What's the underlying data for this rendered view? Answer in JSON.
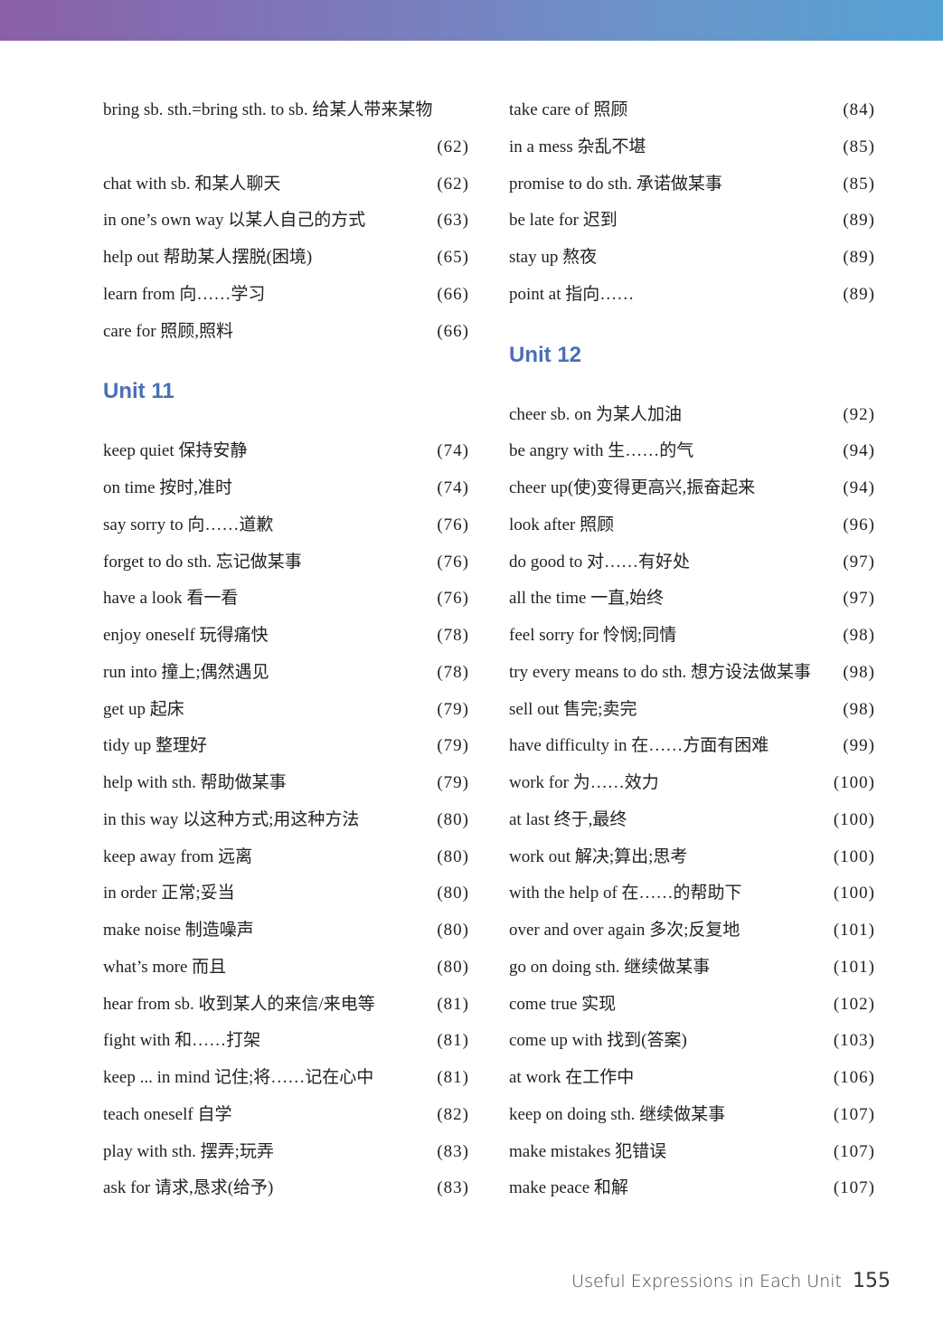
{
  "header_band": {
    "colors": [
      "#8a5fa8",
      "#55a2d5"
    ]
  },
  "columns": [
    {
      "blocks": [
        {
          "type": "row",
          "text": "bring sb. sth.=bring sth. to sb. 给某人带来某物",
          "page": ""
        },
        {
          "type": "row",
          "text": "",
          "page": "(62)"
        },
        {
          "type": "row",
          "text": "chat with sb. 和某人聊天",
          "page": "(62)"
        },
        {
          "type": "row",
          "text": "in one’s own way 以某人自己的方式",
          "page": "(63)"
        },
        {
          "type": "row",
          "text": "help out 帮助某人摆脱(困境)",
          "page": "(65)"
        },
        {
          "type": "row",
          "text": "learn from 向……学习",
          "page": "(66)"
        },
        {
          "type": "row",
          "text": "care for 照顾,照料",
          "page": "(66)"
        },
        {
          "type": "heading",
          "text": "Unit 11"
        },
        {
          "type": "row",
          "text": "keep quiet 保持安静",
          "page": "(74)"
        },
        {
          "type": "row",
          "text": "on time 按时,准时",
          "page": "(74)"
        },
        {
          "type": "row",
          "text": "say sorry to 向……道歉",
          "page": "(76)"
        },
        {
          "type": "row",
          "text": "forget to do sth. 忘记做某事",
          "page": "(76)"
        },
        {
          "type": "row",
          "text": "have a look 看一看",
          "page": "(76)"
        },
        {
          "type": "row",
          "text": "enjoy oneself 玩得痛快",
          "page": "(78)"
        },
        {
          "type": "row",
          "text": "run into 撞上;偶然遇见",
          "page": "(78)"
        },
        {
          "type": "row",
          "text": "get up 起床",
          "page": "(79)"
        },
        {
          "type": "row",
          "text": "tidy up 整理好",
          "page": "(79)"
        },
        {
          "type": "row",
          "text": "help with sth. 帮助做某事",
          "page": "(79)"
        },
        {
          "type": "row",
          "text": "in this way 以这种方式;用这种方法",
          "page": "(80)"
        },
        {
          "type": "row",
          "text": "keep away from 远离",
          "page": "(80)"
        },
        {
          "type": "row",
          "text": "in order 正常;妥当",
          "page": "(80)"
        },
        {
          "type": "row",
          "text": "make noise 制造噪声",
          "page": "(80)"
        },
        {
          "type": "row",
          "text": "what’s more 而且",
          "page": "(80)"
        },
        {
          "type": "row",
          "text": "hear from sb. 收到某人的来信/来电等",
          "page": "(81)"
        },
        {
          "type": "row",
          "text": "fight with 和……打架",
          "page": "(81)"
        },
        {
          "type": "row",
          "text": "keep ... in mind 记住;将……记在心中",
          "page": "(81)"
        },
        {
          "type": "row",
          "text": "teach oneself 自学",
          "page": "(82)"
        },
        {
          "type": "row",
          "text": "play with sth. 摆弄;玩弄",
          "page": "(83)"
        },
        {
          "type": "row",
          "text": "ask for 请求,恳求(给予)",
          "page": "(83)"
        }
      ]
    },
    {
      "blocks": [
        {
          "type": "row",
          "text": "take care of 照顾",
          "page": "(84)"
        },
        {
          "type": "row",
          "text": "in a mess 杂乱不堪",
          "page": "(85)"
        },
        {
          "type": "row",
          "text": "promise to do sth. 承诺做某事",
          "page": "(85)"
        },
        {
          "type": "row",
          "text": "be late for 迟到",
          "page": "(89)"
        },
        {
          "type": "row",
          "text": "stay up 熬夜",
          "page": "(89)"
        },
        {
          "type": "row",
          "text": "point at 指向……",
          "page": "(89)"
        },
        {
          "type": "heading",
          "text": "Unit 12"
        },
        {
          "type": "row",
          "text": "cheer sb. on 为某人加油",
          "page": "(92)"
        },
        {
          "type": "row",
          "text": "be angry with 生……的气",
          "page": "(94)"
        },
        {
          "type": "row",
          "text": "cheer up(使)变得更高兴,振奋起来",
          "page": "(94)"
        },
        {
          "type": "row",
          "text": "look after 照顾",
          "page": "(96)"
        },
        {
          "type": "row",
          "text": "do good to 对……有好处",
          "page": "(97)"
        },
        {
          "type": "row",
          "text": "all the time 一直,始终",
          "page": "(97)"
        },
        {
          "type": "row",
          "text": "feel sorry for 怜悯;同情",
          "page": "(98)"
        },
        {
          "type": "row",
          "text": "try every means to do sth. 想方设法做某事",
          "page": "(98)"
        },
        {
          "type": "row",
          "text": "sell out 售完;卖完",
          "page": "(98)"
        },
        {
          "type": "row",
          "text": "have difficulty in 在……方面有困难",
          "page": "(99)"
        },
        {
          "type": "row",
          "text": "work for 为……效力",
          "page": "(100)"
        },
        {
          "type": "row",
          "text": "at last 终于,最终",
          "page": "(100)"
        },
        {
          "type": "row",
          "text": "work out 解决;算出;思考",
          "page": "(100)"
        },
        {
          "type": "row",
          "text": "with the help of 在……的帮助下",
          "page": "(100)"
        },
        {
          "type": "row",
          "text": "over and over again 多次;反复地",
          "page": "(101)"
        },
        {
          "type": "row",
          "text": "go on doing sth. 继续做某事",
          "page": "(101)"
        },
        {
          "type": "row",
          "text": "come true 实现",
          "page": "(102)"
        },
        {
          "type": "row",
          "text": "come up with 找到(答案)",
          "page": "(103)"
        },
        {
          "type": "row",
          "text": "at work 在工作中",
          "page": "(106)"
        },
        {
          "type": "row",
          "text": "keep on doing sth. 继续做某事",
          "page": "(107)"
        },
        {
          "type": "row",
          "text": "make mistakes 犯错误",
          "page": "(107)"
        },
        {
          "type": "row",
          "text": "make peace 和解",
          "page": "(107)"
        }
      ]
    }
  ],
  "footer": {
    "title": "Useful Expressions in Each Unit",
    "page_number": "155"
  },
  "colors": {
    "heading": "#4a6fb8"
  }
}
